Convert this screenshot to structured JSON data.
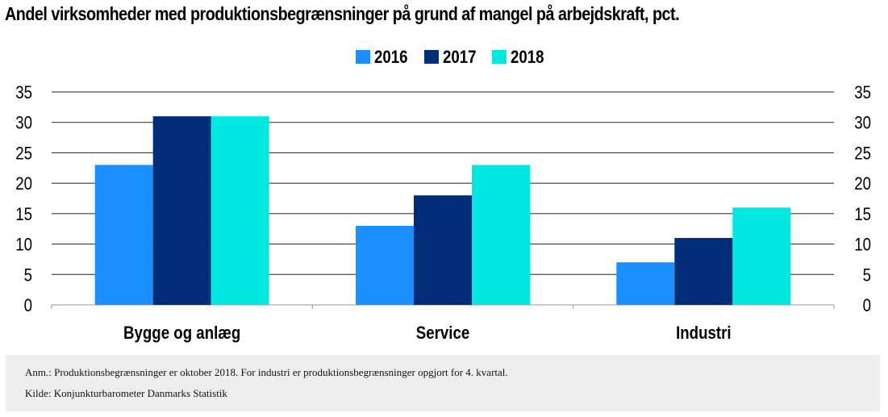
{
  "chart_data": {
    "type": "bar",
    "title": "Andel virksomheder med produktionsbegrænsninger på grund af mangel på arbejdskraft, pct.",
    "categories": [
      "Bygge og anlæg",
      "Service",
      "Industri"
    ],
    "series": [
      {
        "name": "2016",
        "color": "#1a8fff",
        "values": [
          23,
          13,
          7
        ]
      },
      {
        "name": "2017",
        "color": "#012d78",
        "values": [
          31,
          18,
          11
        ]
      },
      {
        "name": "2018",
        "color": "#00e8e1",
        "values": [
          31,
          23,
          16
        ]
      }
    ],
    "ylim": [
      0,
      35
    ],
    "yticks": [
      "0",
      "5",
      "10",
      "15",
      "20",
      "25",
      "30",
      "35"
    ],
    "y_axis_right": true,
    "grid": true,
    "legend_position": "top-center"
  },
  "notes": {
    "anm": "Anm.: Produktionsbegrænsninger er oktober 2018. For industri er produktionsbegrænsninger opgjort for 4. kvartal.",
    "kilde": "Kilde: Konjunkturbarometer Danmarks Statistik"
  }
}
